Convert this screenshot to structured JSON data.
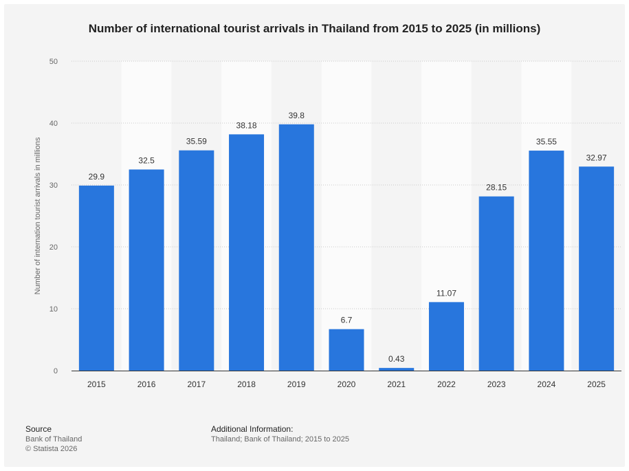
{
  "chart_data": {
    "type": "bar",
    "title": "Number of international tourist arrivals in Thailand from 2015 to 2025 (in millions)",
    "xlabel": "",
    "ylabel": "Number of internation tourist arrivals in millions",
    "categories": [
      "2015",
      "2016",
      "2017",
      "2018",
      "2019",
      "2020",
      "2021",
      "2022",
      "2023",
      "2024",
      "2025"
    ],
    "values": [
      29.9,
      32.5,
      35.59,
      38.18,
      39.8,
      6.7,
      0.43,
      11.07,
      28.15,
      35.55,
      32.97
    ],
    "value_labels": [
      "29.9",
      "32.5",
      "35.59",
      "38.18",
      "39.8",
      "6.7",
      "0.43",
      "11.07",
      "28.15",
      "35.55",
      "32.97"
    ],
    "ylim": [
      0,
      50
    ],
    "yticks": [
      0,
      10,
      20,
      30,
      40,
      50
    ],
    "grid": true,
    "bar_color": "#2876dd"
  },
  "footer": {
    "source_label": "Source",
    "source_lines": [
      "Bank of Thailand",
      "© Statista 2026"
    ],
    "additional_label": "Additional Information:",
    "additional_text": "Thailand; Bank of Thailand; 2015 to 2025"
  }
}
